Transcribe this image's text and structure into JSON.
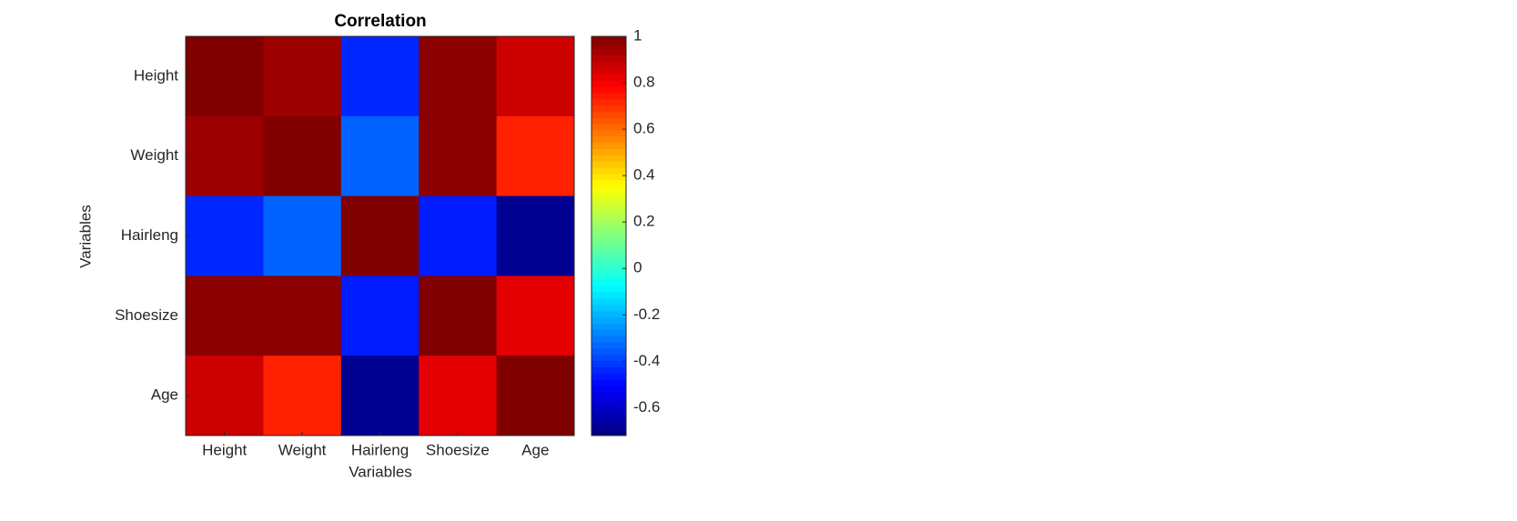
{
  "chart_data": {
    "type": "heatmap",
    "title": "Correlation",
    "xlabel": "Variables",
    "ylabel": "Variables",
    "categories": [
      "Height",
      "Weight",
      "Hairleng",
      "Shoesize",
      "Age"
    ],
    "values": [
      [
        1,
        0.95,
        -0.44,
        0.98,
        0.87
      ],
      [
        0.95,
        1,
        -0.34,
        0.98,
        0.73
      ],
      [
        -0.44,
        -0.34,
        1,
        -0.46,
        -0.69
      ],
      [
        0.98,
        0.98,
        -0.46,
        1,
        0.83
      ],
      [
        0.87,
        0.73,
        -0.69,
        0.83,
        1
      ]
    ],
    "colormap": "jet",
    "clim": [
      -0.72,
      1
    ],
    "cticks": [
      1,
      0.8,
      0.6,
      0.4,
      0.2,
      0,
      -0.2,
      -0.4,
      -0.6
    ]
  }
}
